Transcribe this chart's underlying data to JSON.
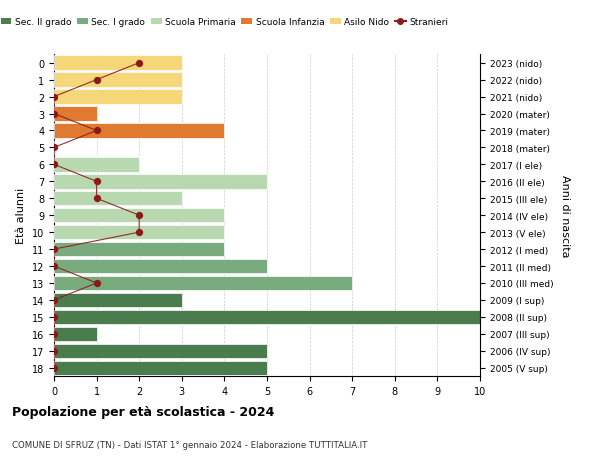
{
  "ages": [
    18,
    17,
    16,
    15,
    14,
    13,
    12,
    11,
    10,
    9,
    8,
    7,
    6,
    5,
    4,
    3,
    2,
    1,
    0
  ],
  "anni_nascita": [
    "2005 (V sup)",
    "2006 (IV sup)",
    "2007 (III sup)",
    "2008 (II sup)",
    "2009 (I sup)",
    "2010 (III med)",
    "2011 (II med)",
    "2012 (I med)",
    "2013 (V ele)",
    "2014 (IV ele)",
    "2015 (III ele)",
    "2016 (II ele)",
    "2017 (I ele)",
    "2018 (mater)",
    "2019 (mater)",
    "2020 (mater)",
    "2021 (nido)",
    "2022 (nido)",
    "2023 (nido)"
  ],
  "bar_values": [
    5,
    5,
    1,
    10,
    3,
    7,
    5,
    4,
    4,
    4,
    3,
    5,
    2,
    0,
    4,
    1,
    3,
    3,
    3
  ],
  "bar_colors": [
    "#4a7c4e",
    "#4a7c4e",
    "#4a7c4e",
    "#4a7c4e",
    "#4a7c4e",
    "#7aab7e",
    "#7aab7e",
    "#7aab7e",
    "#b8d9b0",
    "#b8d9b0",
    "#b8d9b0",
    "#b8d9b0",
    "#b8d9b0",
    "#e07a30",
    "#e07a30",
    "#e07a30",
    "#f5d77a",
    "#f5d77a",
    "#f5d77a"
  ],
  "stranieri_values": [
    0,
    0,
    0,
    0,
    0,
    1,
    0,
    0,
    2,
    2,
    1,
    1,
    0,
    0,
    1,
    0,
    0,
    1,
    2
  ],
  "color_sec2": "#4a7c4e",
  "color_sec1": "#7aab7e",
  "color_primaria": "#b8d9b0",
  "color_infanzia": "#e07a30",
  "color_nido": "#f5d77a",
  "color_stranieri": "#8b1a1a",
  "title": "Popolazione per età scolastica - 2024",
  "subtitle": "COMUNE DI SFRUZ (TN) - Dati ISTAT 1° gennaio 2024 - Elaborazione TUTTITALIA.IT",
  "ylabel": "Età alunni",
  "y2label": "Anni di nascita",
  "xlabel_vals": [
    0,
    1,
    2,
    3,
    4,
    5,
    6,
    7,
    8,
    9,
    10
  ],
  "xlim": [
    0,
    10
  ],
  "legend_labels": [
    "Sec. II grado",
    "Sec. I grado",
    "Scuola Primaria",
    "Scuola Infanzia",
    "Asilo Nido",
    "Stranieri"
  ],
  "bg_color": "#ffffff",
  "grid_color": "#cccccc"
}
